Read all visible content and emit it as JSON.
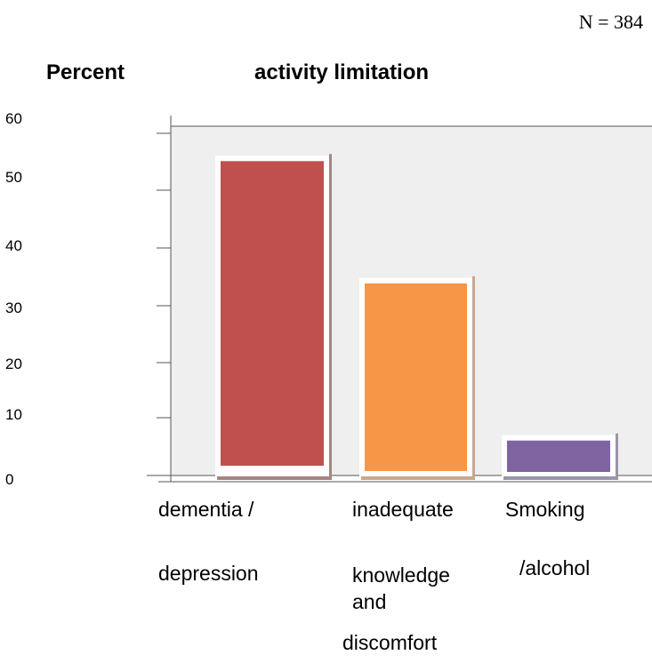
{
  "note": "N = 384",
  "title_left": "Percent",
  "title_right": "activity limitation",
  "chart_data": {
    "type": "bar",
    "title": "Percent activity limitation",
    "ylabel": "Percent",
    "ylim": [
      0,
      60
    ],
    "yticks": [
      "60",
      "50",
      "40",
      "30",
      "20",
      "10",
      "0"
    ],
    "categories": [
      [
        "dementia /",
        "depression"
      ],
      [
        "inadequate",
        "knowledge",
        "and",
        "discomfort"
      ],
      [
        "Smoking",
        "/alcohol"
      ]
    ],
    "values": [
      54,
      33,
      6
    ],
    "colors": [
      "#c0504d",
      "#f79646",
      "#8064a2"
    ],
    "grid": false,
    "legend": "none"
  }
}
